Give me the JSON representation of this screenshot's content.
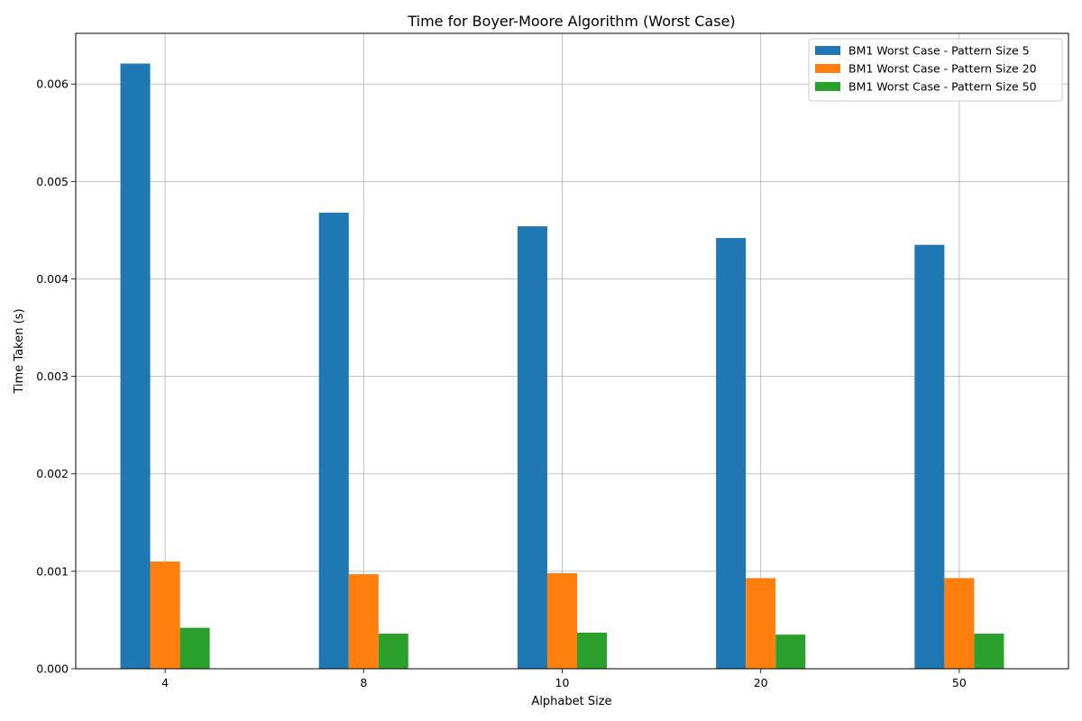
{
  "chart_data": {
    "type": "bar",
    "title": "Time for Boyer-Moore Algorithm (Worst Case)",
    "xlabel": "Alphabet Size",
    "ylabel": "Time Taken (s)",
    "categories": [
      "4",
      "8",
      "10",
      "20",
      "50"
    ],
    "ylim": [
      0,
      0.00652
    ],
    "yticks": [
      0.0,
      0.001,
      0.002,
      0.003,
      0.004,
      0.005,
      0.006
    ],
    "ytick_labels": [
      "0.000",
      "0.001",
      "0.002",
      "0.003",
      "0.004",
      "0.005",
      "0.006"
    ],
    "grid": true,
    "legend_position": "top-right",
    "series": [
      {
        "name": "BM1 Worst Case - Pattern Size 5",
        "color": "#1f77b4",
        "values": [
          0.00621,
          0.00468,
          0.00454,
          0.00442,
          0.00435
        ]
      },
      {
        "name": "BM1 Worst Case - Pattern Size 20",
        "color": "#ff7f0e",
        "values": [
          0.0011,
          0.00097,
          0.00098,
          0.00093,
          0.00093
        ]
      },
      {
        "name": "BM1 Worst Case - Pattern Size 50",
        "color": "#2ca02c",
        "values": [
          0.00042,
          0.00036,
          0.00037,
          0.00035,
          0.00036
        ]
      }
    ]
  }
}
